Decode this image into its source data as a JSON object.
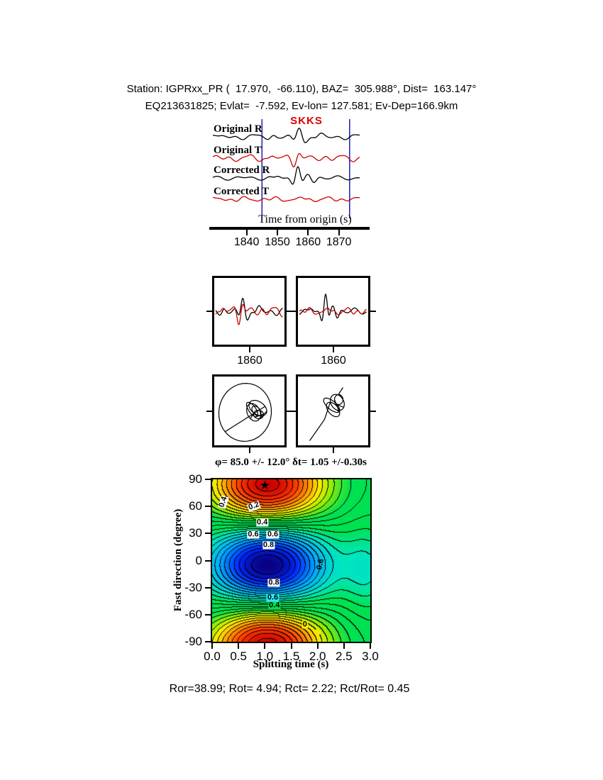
{
  "header": {
    "line1": "Station: IGPRxx_PR (  17.970,  -66.110), BAZ=  305.988°, Dist=  163.147°",
    "line2": "EQ213631825; Evlat=  -7.592, Ev-lon= 127.581; Ev-Dep=166.9km"
  },
  "footer": {
    "text": "Ror=38.99; Rot= 4.94; Rct= 2.22; Rct/Rot= 0.45"
  },
  "icons": {
    "star": "★"
  },
  "colors": {
    "trace_black": "#000000",
    "trace_red": "#cc0000",
    "window_blue": "#2a2ab5",
    "phase_red": "#dd0000",
    "dot_yellow": "#ffe400",
    "background_green": "#00e150"
  },
  "chart_data": [
    {
      "type": "line",
      "id": "waveform-traces",
      "phase_label": "SKKS",
      "xlabel": "Time from origin (s)",
      "t_range": [
        1829,
        1877
      ],
      "xticks": [
        1840,
        1850,
        1860,
        1870
      ],
      "window": [
        1845,
        1873.5
      ],
      "series": [
        {
          "name": "Original R",
          "color": "#000000",
          "noise": [
            [
              2.2,
              0.09,
              0.6
            ],
            [
              1.6,
              0.15,
              2.2
            ],
            [
              1.1,
              0.24,
              4.1
            ]
          ],
          "pulses": [
            [
              1857.0,
              2.2,
              11,
              0.22,
              1.35
            ],
            [
              1863.5,
              2.6,
              4.5,
              0.2,
              0.4
            ],
            [
              1849,
              1.8,
              2.5,
              0.2,
              2.6
            ]
          ]
        },
        {
          "name": "Original T",
          "color": "#cc0000",
          "noise": [
            [
              2.8,
              0.1,
              1.1
            ],
            [
              2.0,
              0.165,
              3.1
            ],
            [
              1.4,
              0.26,
              0.8
            ]
          ],
          "pulses": [
            [
              1856.2,
              2.1,
              9,
              0.24,
              0.25
            ],
            [
              1848.5,
              2.0,
              4,
              0.2,
              2.1
            ],
            [
              1866,
              2.8,
              4.5,
              0.18,
              1.1
            ]
          ]
        },
        {
          "name": "Corrected R",
          "color": "#000000",
          "noise": [
            [
              1.8,
              0.1,
              2.1
            ],
            [
              1.4,
              0.18,
              0.5
            ]
          ],
          "pulses": [
            [
              1856.6,
              1.9,
              17,
              0.24,
              1.5
            ],
            [
              1861.5,
              2.3,
              5,
              0.22,
              4.1
            ],
            [
              1850,
              2.0,
              2.5,
              0.2,
              1.0
            ]
          ]
        },
        {
          "name": "Corrected T",
          "color": "#cc0000",
          "noise": [
            [
              2.0,
              0.11,
              1.4
            ],
            [
              1.5,
              0.19,
              2.7
            ],
            [
              1.0,
              0.28,
              5.1
            ]
          ],
          "pulses": [
            [
              1857.5,
              2.6,
              3,
              0.22,
              0.9
            ]
          ]
        }
      ]
    },
    {
      "type": "line",
      "id": "zoom-original",
      "xtick_label": "1860",
      "t_range": [
        1845,
        1875
      ],
      "series_refs": [
        0,
        1
      ]
    },
    {
      "type": "line",
      "id": "zoom-corrected",
      "xtick_label": "1860",
      "t_range": [
        1845,
        1875
      ],
      "series_refs": [
        2,
        3
      ]
    },
    {
      "type": "scatter",
      "id": "particle-motion-original",
      "segments": [
        {
          "c": [
            -6,
            2
          ],
          "r": [
            37,
            41
          ],
          "a0": 120,
          "turns": 1.03,
          "rot": 8
        },
        {
          "c": [
            12,
            -4
          ],
          "r": [
            14,
            9
          ],
          "a0": 300,
          "turns": 1.1,
          "rot": 35
        },
        {
          "c": [
            6,
            2
          ],
          "r": [
            9,
            13
          ],
          "a0": 80,
          "turns": 1.2,
          "rot": -25
        },
        {
          "c": [
            13,
            5
          ],
          "r": [
            7,
            6
          ],
          "a0": 200,
          "turns": 1.4,
          "rot": 10
        },
        {
          "c": [
            4,
            -2
          ],
          "r": [
            12,
            5
          ],
          "a0": 0,
          "turns": 1.0,
          "rot": 55
        },
        {
          "c": [
            10,
            0
          ],
          "r": [
            5,
            8
          ],
          "a0": 150,
          "turns": 1.3,
          "rot": -40
        }
      ]
    },
    {
      "type": "scatter",
      "id": "particle-motion-corrected",
      "segments": [
        {
          "line": [
            [
              -33,
              42
            ],
            [
              -12,
              12
            ]
          ]
        },
        {
          "c": [
            0,
            -2
          ],
          "r": [
            12,
            7
          ],
          "a0": 210,
          "turns": 1.1,
          "rot": 50
        },
        {
          "c": [
            6,
            -12
          ],
          "r": [
            9,
            12
          ],
          "a0": 60,
          "turns": 1.2,
          "rot": -30
        },
        {
          "c": [
            -2,
            -8
          ],
          "r": [
            14,
            6
          ],
          "a0": 0,
          "turns": 1.0,
          "rot": 40
        },
        {
          "c": [
            8,
            -16
          ],
          "r": [
            6,
            7
          ],
          "a0": 180,
          "turns": 1.5,
          "rot": 0
        },
        {
          "line": [
            [
              8,
              -24
            ],
            [
              14,
              -33
            ]
          ]
        }
      ]
    },
    {
      "type": "heatmap",
      "id": "splitting-misfit-map",
      "title": "φ= 85.0 +/- 12.0° δt= 1.05 +/-0.30s",
      "xlabel": "Splitting time (s)",
      "ylabel": "Fast direction (degree)",
      "x_range": [
        0,
        3
      ],
      "y_range": [
        -90,
        90
      ],
      "xticks": [
        "0.0",
        "0.5",
        "1.0",
        "1.5",
        "2.0",
        "2.5",
        "3.0"
      ],
      "yticks": [
        "90",
        "60",
        "30",
        "0",
        "-30",
        "-60",
        "-90"
      ],
      "best_solution": {
        "phi_deg": 85.0,
        "phi_err_deg": 12.0,
        "dt_s": 1.05,
        "dt_err_s": 0.3
      },
      "star_marker": {
        "t": 1.0,
        "phi": 82
      },
      "secondary_marker": {
        "t": 2.0,
        "phi": -79
      },
      "field": {
        "t0": 1.05,
        "tw": 1.1,
        "phi0": 85,
        "sec_amp": -0.22,
        "sec_t0": 2.95,
        "sec_tw": 0.45,
        "sec_phi0": -10,
        "sec_phiw": 45
      },
      "contour_step": 0.07,
      "contour_labels": [
        {
          "text": "0.4",
          "t": 0.21,
          "phi": 65,
          "rot": -72,
          "bg": "#ffffff"
        },
        {
          "text": "0.2",
          "t": 0.8,
          "phi": 60,
          "rot": -20,
          "bg": "#ffffff"
        },
        {
          "text": "0.4",
          "t": 0.95,
          "phi": 42,
          "rot": 0,
          "bg": "#ffffff"
        },
        {
          "text": "0.6",
          "t": 0.78,
          "phi": 29,
          "rot": 0,
          "bg": "#ffffff"
        },
        {
          "text": "0.6",
          "t": 1.15,
          "phi": 29,
          "rot": 0,
          "bg": "#ffffff"
        },
        {
          "text": "0.8",
          "t": 1.07,
          "phi": 17,
          "rot": 0,
          "bg": "#ffffff"
        },
        {
          "text": "0.6",
          "t": 2.06,
          "phi": -4,
          "rot": -78,
          "bg": ""
        },
        {
          "text": "0.8",
          "t": 1.17,
          "phi": -25,
          "rot": 0,
          "bg": "#ffffff"
        },
        {
          "text": "0.6",
          "t": 1.15,
          "phi": -41,
          "rot": 0,
          "bg": "#2ee8ff"
        },
        {
          "text": "0.4",
          "t": 1.18,
          "phi": -50,
          "rot": 0,
          "bg": "#00e050"
        },
        {
          "text": "0",
          "t": 1.76,
          "phi": -71,
          "rot": 0,
          "bg": "#ffee00"
        }
      ]
    }
  ]
}
